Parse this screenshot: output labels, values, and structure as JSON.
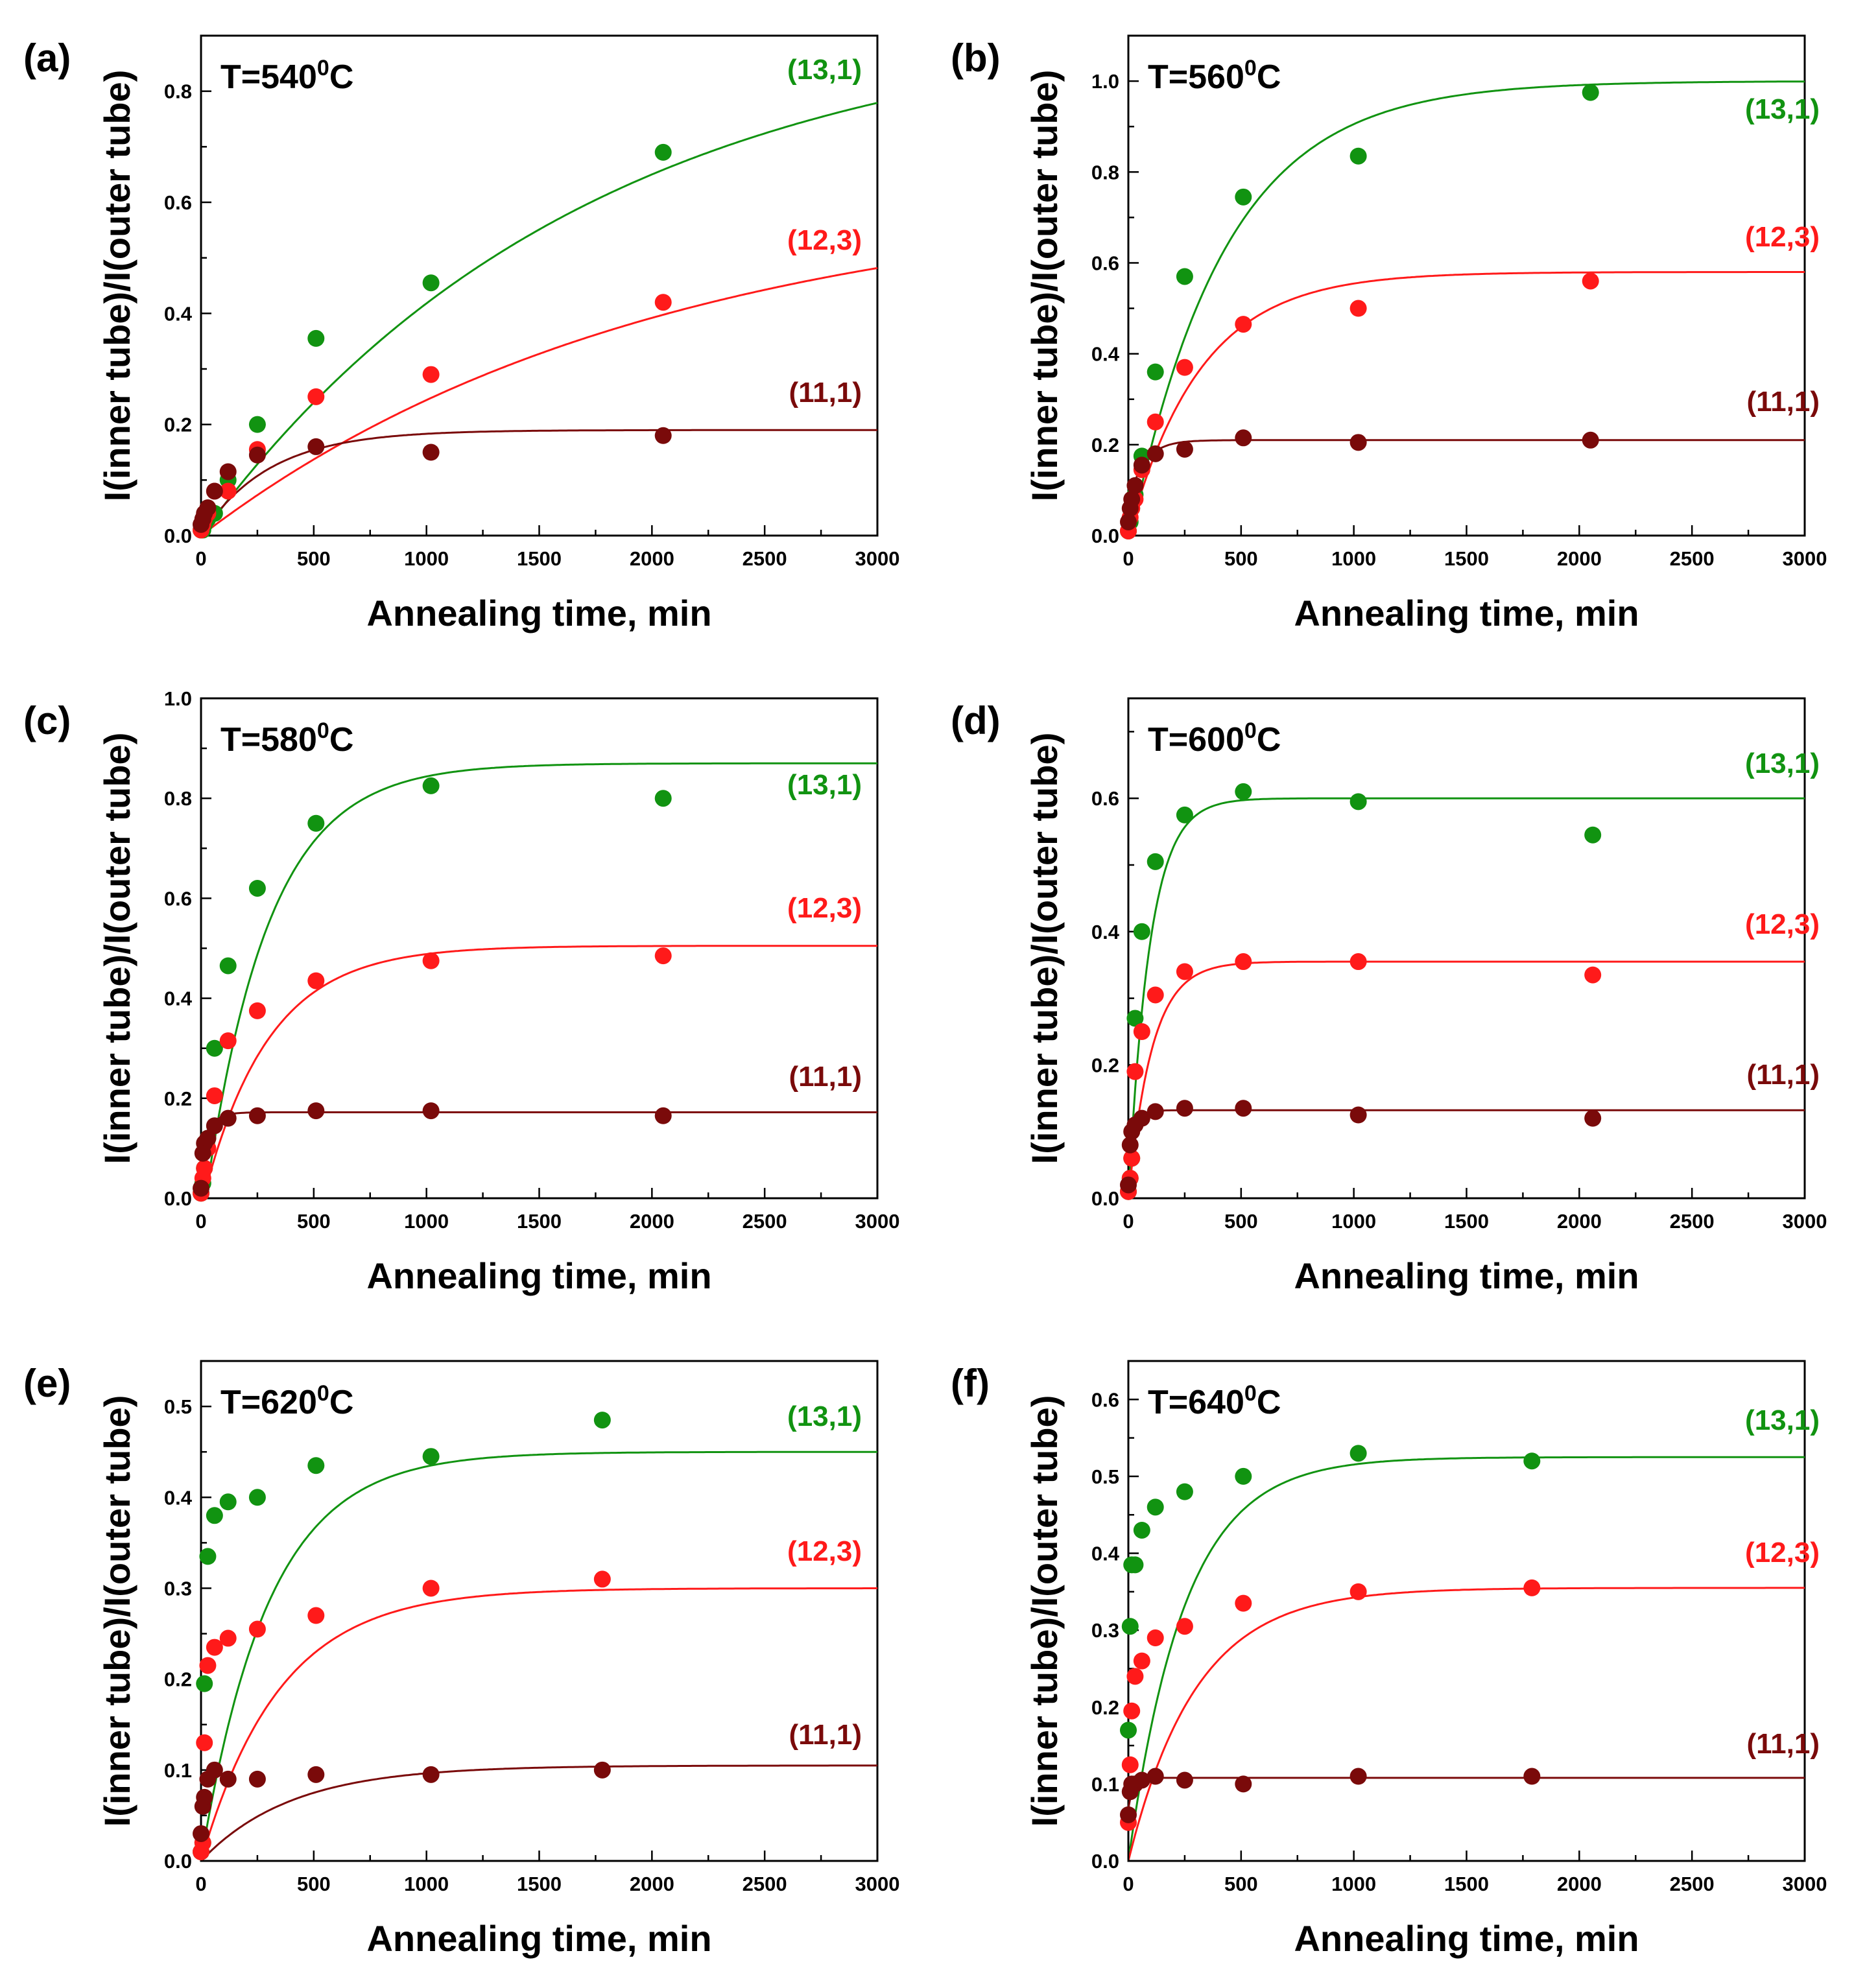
{
  "figure": {
    "colors": {
      "s13_1": "#119311",
      "s12_3": "#ff1a1a",
      "s11_1": "#7a0a0a",
      "axis": "#000000"
    }
  },
  "chart_data": [
    {
      "panel_label": "(a)",
      "temperature": "T=540",
      "temperature_sup": "0",
      "temperature_unit": "C",
      "type": "scatter",
      "xlabel": "Annealing time, min",
      "ylabel": "I(inner tube)/I(outer tube)",
      "xlim": [
        0,
        3000
      ],
      "ylim": [
        0,
        0.9
      ],
      "xticks": [
        0,
        500,
        1000,
        1500,
        2000,
        2500,
        3000
      ],
      "xtick_labels": [
        "0",
        "500",
        "1000",
        "1500",
        "2000",
        "2500",
        "3000"
      ],
      "yticks": [
        0,
        0.2,
        0.4,
        0.6,
        0.8
      ],
      "ytick_labels": [
        "0.0",
        "0.2",
        "0.4",
        "0.6",
        "0.8"
      ],
      "series": [
        {
          "name": "(13,1)",
          "color": "#119311",
          "x": [
            0,
            8,
            15,
            30,
            60,
            120,
            250,
            510,
            1020,
            2050
          ],
          "y": [
            0.01,
            0.01,
            0.02,
            0.03,
            0.04,
            0.1,
            0.2,
            0.355,
            0.455,
            0.69
          ],
          "fit": {
            "A": 0.94,
            "tau": 1700,
            "x0": 0
          }
        },
        {
          "name": "(12,3)",
          "color": "#ff1a1a",
          "x": [
            0,
            8,
            15,
            30,
            60,
            120,
            250,
            510,
            1020,
            2050
          ],
          "y": [
            0.01,
            0.02,
            0.03,
            0.04,
            0.08,
            0.08,
            0.155,
            0.25,
            0.29,
            0.42
          ],
          "fit": {
            "A": 0.62,
            "tau": 2000,
            "x0": 0
          }
        },
        {
          "name": "(11,1)",
          "color": "#7a0a0a",
          "x": [
            0,
            8,
            15,
            30,
            60,
            120,
            250,
            510,
            1020,
            2050
          ],
          "y": [
            0.02,
            0.03,
            0.04,
            0.05,
            0.08,
            0.115,
            0.145,
            0.16,
            0.15,
            0.18
          ],
          "fit": {
            "A": 0.19,
            "tau": 300,
            "x0": 0
          }
        }
      ]
    },
    {
      "panel_label": "(b)",
      "temperature": "T=560",
      "temperature_sup": "0",
      "temperature_unit": "C",
      "type": "scatter",
      "xlabel": "Annealing time, min",
      "ylabel": "I(inner tube)/I(outer tube)",
      "xlim": [
        0,
        3000
      ],
      "ylim": [
        0,
        1.1
      ],
      "xticks": [
        0,
        500,
        1000,
        1500,
        2000,
        2500,
        3000
      ],
      "xtick_labels": [
        "0",
        "500",
        "1000",
        "1500",
        "2000",
        "2500",
        "3000"
      ],
      "yticks": [
        0,
        0.2,
        0.4,
        0.6,
        0.8,
        1.0
      ],
      "ytick_labels": [
        "0.0",
        "0.2",
        "0.4",
        "0.6",
        "0.8",
        "1.0"
      ],
      "series": [
        {
          "name": "(13,1)",
          "color": "#119311",
          "x": [
            0,
            8,
            15,
            30,
            60,
            120,
            250,
            510,
            1020,
            2050
          ],
          "y": [
            0.01,
            0.03,
            0.06,
            0.09,
            0.175,
            0.36,
            0.57,
            0.745,
            0.835,
            0.975
          ],
          "fit": {
            "A": 1.0,
            "tau": 420,
            "x0": 10
          }
        },
        {
          "name": "(12,3)",
          "color": "#ff1a1a",
          "x": [
            0,
            8,
            15,
            30,
            60,
            120,
            250,
            510,
            1020,
            2050
          ],
          "y": [
            0.01,
            0.04,
            0.06,
            0.08,
            0.145,
            0.25,
            0.37,
            0.465,
            0.5,
            0.56
          ],
          "fit": {
            "A": 0.58,
            "tau": 320,
            "x0": 0
          }
        },
        {
          "name": "(11,1)",
          "color": "#7a0a0a",
          "x": [
            0,
            8,
            15,
            30,
            60,
            120,
            250,
            510,
            1020,
            2050
          ],
          "y": [
            0.03,
            0.06,
            0.08,
            0.11,
            0.155,
            0.18,
            0.19,
            0.215,
            0.205,
            0.21
          ],
          "fit": {
            "A": 0.21,
            "tau": 70,
            "x0": -30
          }
        }
      ]
    },
    {
      "panel_label": "(c)",
      "temperature": "T=580",
      "temperature_sup": "0",
      "temperature_unit": "C",
      "type": "scatter",
      "xlabel": "Annealing time, min",
      "ylabel": "I(inner tube)/I(outer tube)",
      "xlim": [
        0,
        3000
      ],
      "ylim": [
        0,
        1.0
      ],
      "xticks": [
        0,
        500,
        1000,
        1500,
        2000,
        2500,
        3000
      ],
      "xtick_labels": [
        "0",
        "500",
        "1000",
        "1500",
        "2000",
        "2500",
        "3000"
      ],
      "yticks": [
        0,
        0.2,
        0.4,
        0.6,
        0.8,
        1.0
      ],
      "ytick_labels": [
        "0.0",
        "0.2",
        "0.4",
        "0.6",
        "0.8",
        "1.0"
      ],
      "series": [
        {
          "name": "(13,1)",
          "color": "#119311",
          "x": [
            0,
            8,
            15,
            30,
            60,
            120,
            250,
            510,
            1020,
            2050
          ],
          "y": [
            0.01,
            0.03,
            0.06,
            0.12,
            0.3,
            0.465,
            0.62,
            0.75,
            0.825,
            0.8
          ],
          "fit": {
            "A": 0.87,
            "tau": 280,
            "x0": 20
          }
        },
        {
          "name": "(12,3)",
          "color": "#ff1a1a",
          "x": [
            0,
            8,
            15,
            30,
            60,
            120,
            250,
            510,
            1020,
            2050
          ],
          "y": [
            0.01,
            0.04,
            0.06,
            0.1,
            0.205,
            0.315,
            0.375,
            0.435,
            0.475,
            0.485
          ],
          "fit": {
            "A": 0.505,
            "tau": 290,
            "x0": 10
          }
        },
        {
          "name": "(11,1)",
          "color": "#7a0a0a",
          "x": [
            0,
            8,
            15,
            30,
            60,
            120,
            250,
            510,
            1020,
            2050
          ],
          "y": [
            0.02,
            0.09,
            0.11,
            0.12,
            0.145,
            0.16,
            0.165,
            0.175,
            0.175,
            0.165
          ],
          "fit": {
            "A": 0.172,
            "tau": 45,
            "x0": -40
          }
        }
      ]
    },
    {
      "panel_label": "(d)",
      "temperature": "T=600",
      "temperature_sup": "0",
      "temperature_unit": "C",
      "type": "scatter",
      "xlabel": "Annealing time, min",
      "ylabel": "I(inner tube)/I(outer tube)",
      "xlim": [
        0,
        3000
      ],
      "ylim": [
        0,
        0.75
      ],
      "xticks": [
        0,
        500,
        1000,
        1500,
        2000,
        2500,
        3000
      ],
      "xtick_labels": [
        "0",
        "500",
        "1000",
        "1500",
        "2000",
        "2500",
        "3000"
      ],
      "yticks": [
        0,
        0.2,
        0.4,
        0.6
      ],
      "ytick_labels": [
        "0.0",
        "0.2",
        "0.4",
        "0.6"
      ],
      "series": [
        {
          "name": "(13,1)",
          "color": "#119311",
          "x": [
            0,
            8,
            15,
            30,
            60,
            120,
            250,
            510,
            1020,
            2060
          ],
          "y": [
            0.01,
            0.03,
            0.06,
            0.27,
            0.4,
            0.505,
            0.575,
            0.61,
            0.595,
            0.545
          ],
          "fit": {
            "A": 0.6,
            "tau": 95,
            "x0": 0
          }
        },
        {
          "name": "(12,3)",
          "color": "#ff1a1a",
          "x": [
            0,
            8,
            15,
            30,
            60,
            120,
            250,
            510,
            1020,
            2060
          ],
          "y": [
            0.01,
            0.03,
            0.06,
            0.19,
            0.25,
            0.305,
            0.34,
            0.355,
            0.355,
            0.335
          ],
          "fit": {
            "A": 0.355,
            "tau": 105,
            "x0": 0
          }
        },
        {
          "name": "(11,1)",
          "color": "#7a0a0a",
          "x": [
            0,
            8,
            15,
            30,
            60,
            120,
            250,
            510,
            1020,
            2060
          ],
          "y": [
            0.02,
            0.08,
            0.1,
            0.11,
            0.12,
            0.13,
            0.135,
            0.135,
            0.125,
            0.12
          ],
          "fit": {
            "A": 0.132,
            "tau": 30,
            "x0": -20
          }
        }
      ]
    },
    {
      "panel_label": "(e)",
      "temperature": "T=620",
      "temperature_sup": "0",
      "temperature_unit": "C",
      "type": "scatter",
      "xlabel": "Annealing time, min",
      "ylabel": "I(inner tube)/I(outer tube)",
      "xlim": [
        0,
        3000
      ],
      "ylim": [
        0,
        0.55
      ],
      "xticks": [
        0,
        500,
        1000,
        1500,
        2000,
        2500,
        3000
      ],
      "xtick_labels": [
        "0",
        "500",
        "1000",
        "1500",
        "2000",
        "2500",
        "3000"
      ],
      "yticks": [
        0,
        0.1,
        0.2,
        0.3,
        0.4,
        0.5
      ],
      "ytick_labels": [
        "0.0",
        "0.1",
        "0.2",
        "0.3",
        "0.4",
        "0.5"
      ],
      "series": [
        {
          "name": "(13,1)",
          "color": "#119311",
          "x": [
            0,
            8,
            15,
            30,
            60,
            120,
            250,
            510,
            1020,
            1780
          ],
          "y": [
            0.01,
            0.02,
            0.195,
            0.335,
            0.38,
            0.395,
            0.4,
            0.435,
            0.445,
            0.485
          ],
          "fit": {
            "A": 0.45,
            "tau": 300,
            "x0": 0
          }
        },
        {
          "name": "(12,3)",
          "color": "#ff1a1a",
          "x": [
            0,
            8,
            15,
            30,
            60,
            120,
            250,
            510,
            1020,
            1780
          ],
          "y": [
            0.01,
            0.02,
            0.13,
            0.215,
            0.235,
            0.245,
            0.255,
            0.27,
            0.3,
            0.31
          ],
          "fit": {
            "A": 0.3,
            "tau": 350,
            "x0": 0
          }
        },
        {
          "name": "(11,1)",
          "color": "#7a0a0a",
          "x": [
            0,
            8,
            15,
            30,
            60,
            120,
            250,
            510,
            1020,
            1780
          ],
          "y": [
            0.03,
            0.06,
            0.07,
            0.09,
            0.1,
            0.09,
            0.09,
            0.095,
            0.095,
            0.1
          ],
          "fit": {
            "A": 0.105,
            "tau": 400,
            "x0": 0
          }
        }
      ]
    },
    {
      "panel_label": "(f)",
      "temperature": "T=640",
      "temperature_sup": "0",
      "temperature_unit": "C",
      "type": "scatter",
      "xlabel": "Annealing time, min",
      "ylabel": "I(inner tube)/I(outer tube)",
      "xlim": [
        0,
        3000
      ],
      "ylim": [
        0,
        0.65
      ],
      "xticks": [
        0,
        500,
        1000,
        1500,
        2000,
        2500,
        3000
      ],
      "xtick_labels": [
        "0",
        "500",
        "1000",
        "1500",
        "2000",
        "2500",
        "3000"
      ],
      "yticks": [
        0,
        0.1,
        0.2,
        0.3,
        0.4,
        0.5,
        0.6
      ],
      "ytick_labels": [
        "0.0",
        "0.1",
        "0.2",
        "0.3",
        "0.4",
        "0.5",
        "0.6"
      ],
      "series": [
        {
          "name": "(13,1)",
          "color": "#119311",
          "x": [
            0,
            8,
            15,
            30,
            60,
            120,
            250,
            510,
            1020,
            1790
          ],
          "y": [
            0.17,
            0.305,
            0.385,
            0.385,
            0.43,
            0.46,
            0.48,
            0.5,
            0.53,
            0.52
          ],
          "fit": {
            "A": 0.525,
            "tau": 250,
            "x0": 0
          }
        },
        {
          "name": "(12,3)",
          "color": "#ff1a1a",
          "x": [
            0,
            8,
            15,
            30,
            60,
            120,
            250,
            510,
            1020,
            1790
          ],
          "y": [
            0.05,
            0.125,
            0.195,
            0.24,
            0.26,
            0.29,
            0.305,
            0.335,
            0.35,
            0.355
          ],
          "fit": {
            "A": 0.355,
            "tau": 300,
            "x0": 0
          }
        },
        {
          "name": "(11,1)",
          "color": "#7a0a0a",
          "x": [
            0,
            8,
            15,
            30,
            60,
            120,
            250,
            510,
            1020,
            1790
          ],
          "y": [
            0.06,
            0.09,
            0.1,
            0.1,
            0.105,
            0.11,
            0.105,
            0.1,
            0.11,
            0.11
          ],
          "fit": {
            "A": 0.108,
            "tau": 20,
            "x0": -20
          }
        }
      ]
    }
  ]
}
